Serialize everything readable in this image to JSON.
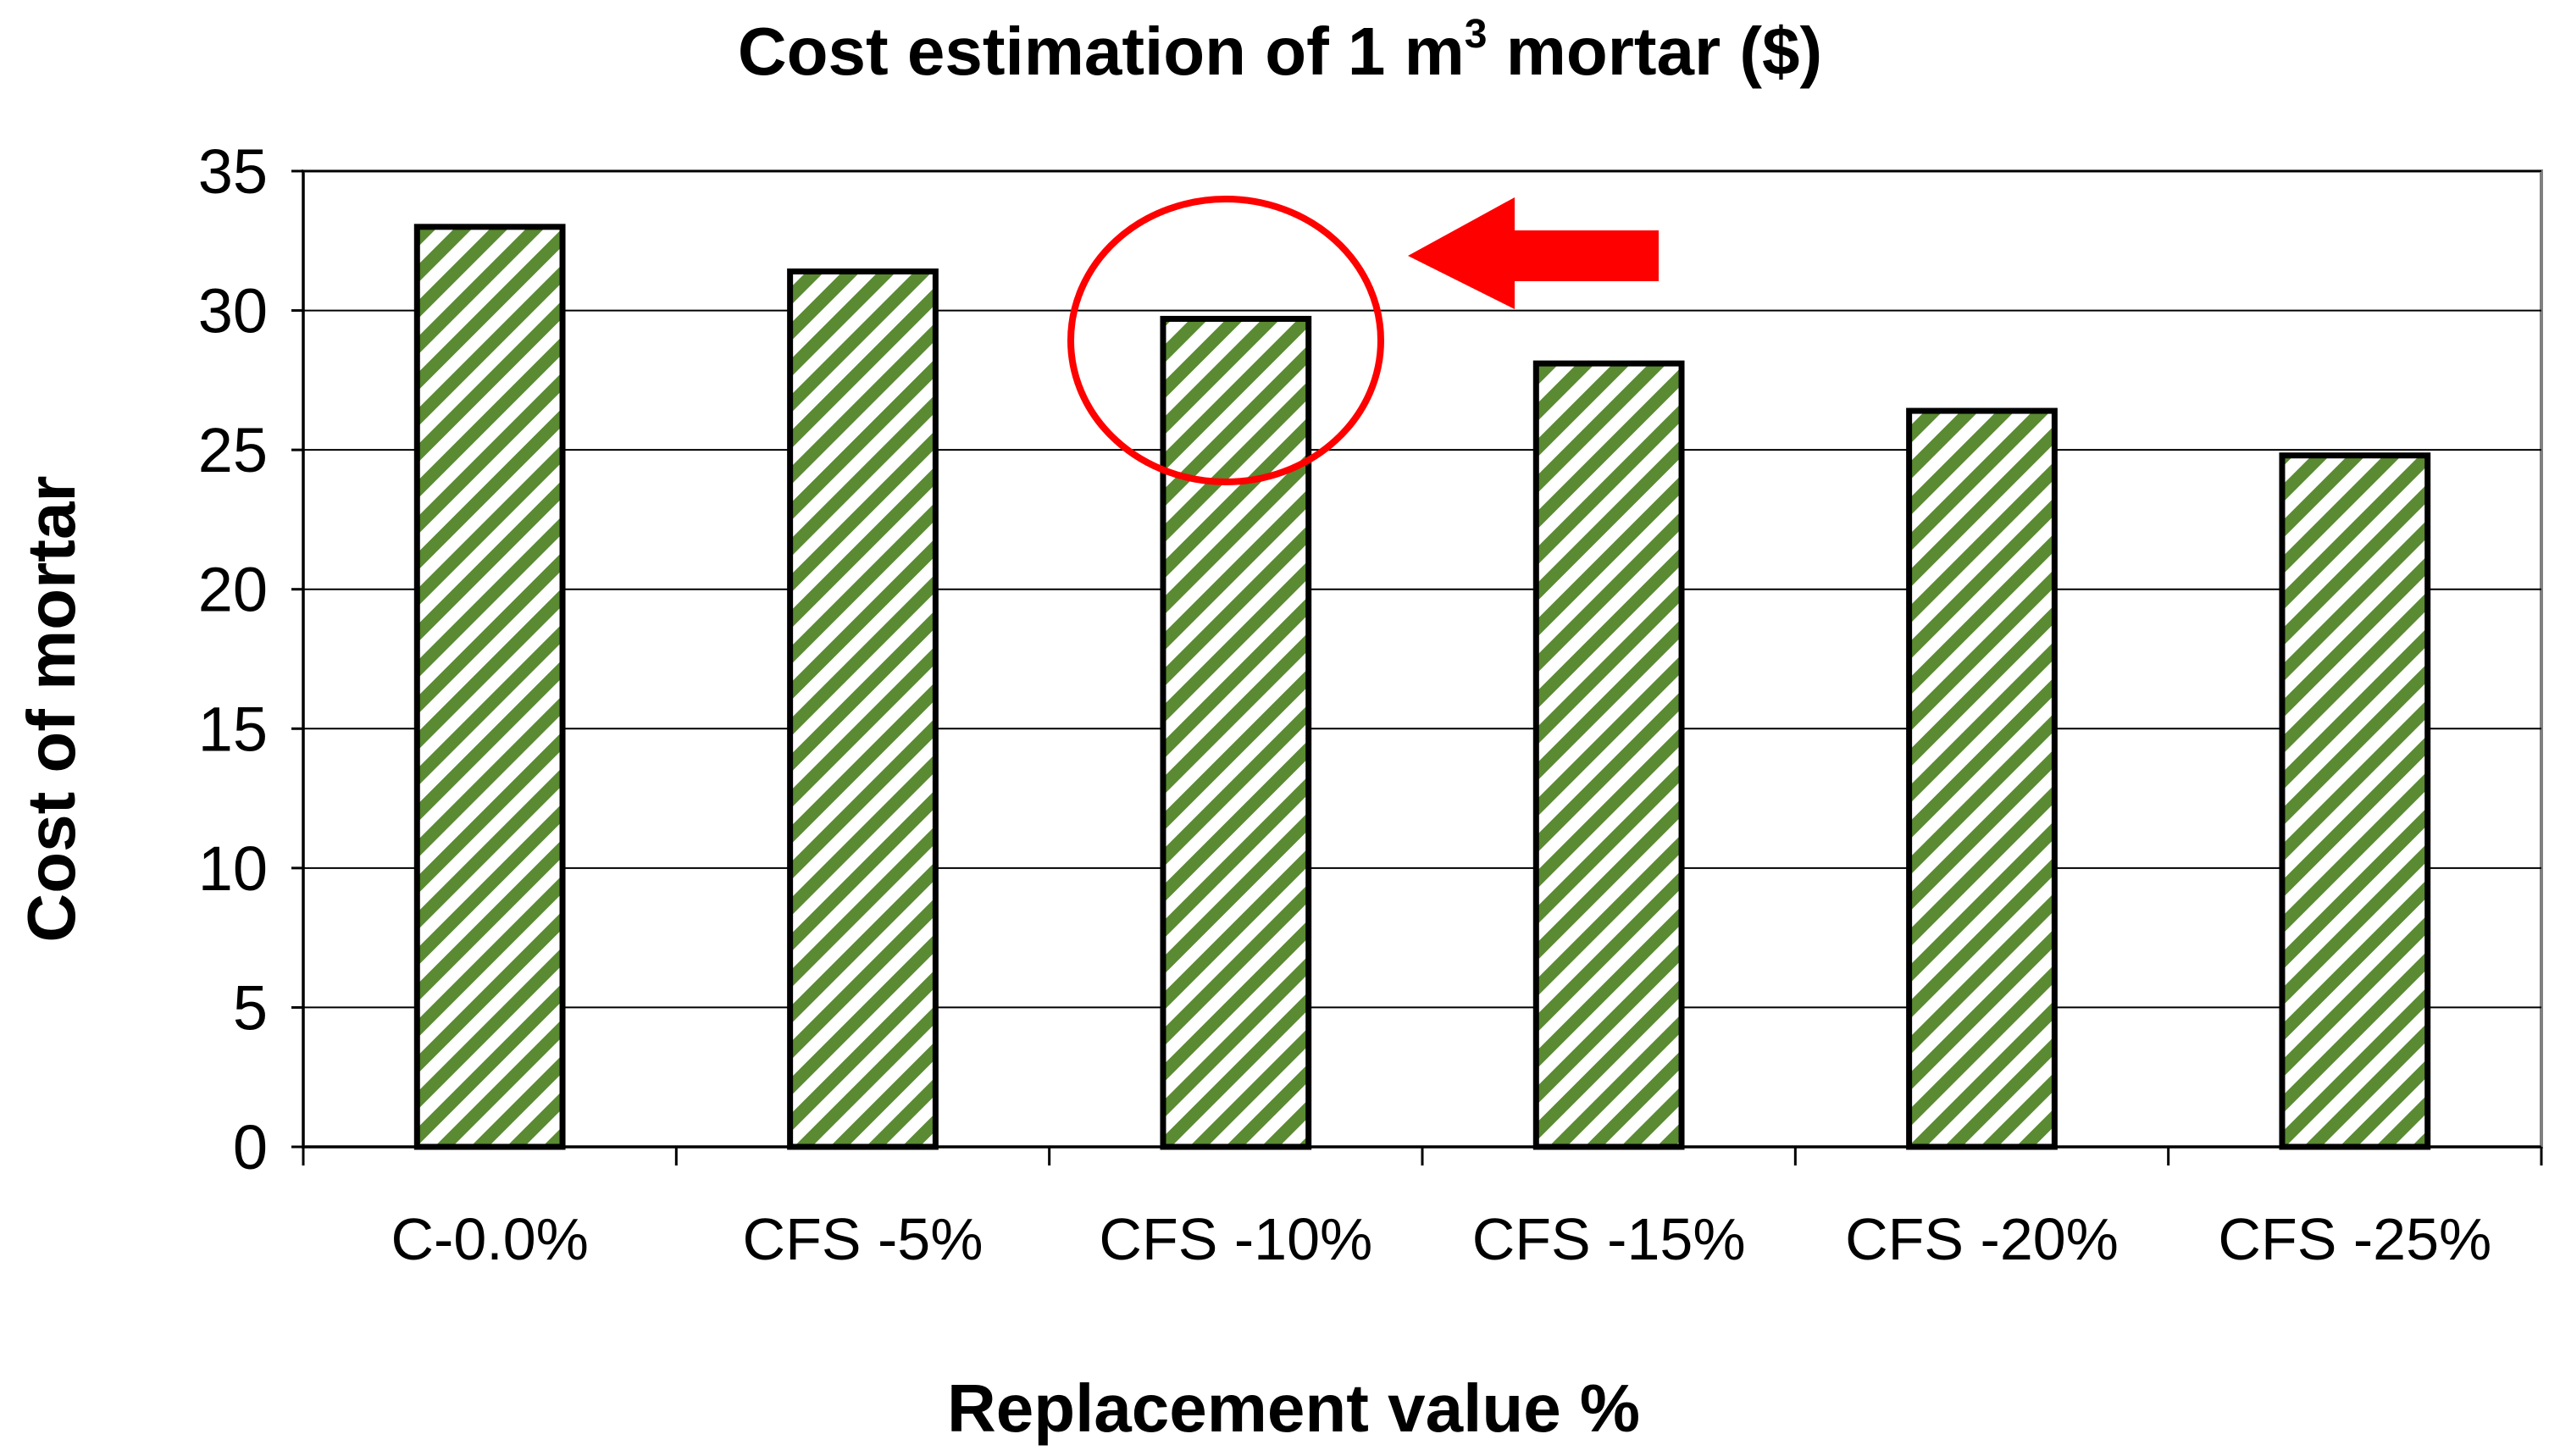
{
  "chart_data": {
    "type": "bar",
    "title": "Cost estimation of 1 m",
    "title_superscript": "3",
    "title_suffix": " mortar ($)",
    "xlabel": "Replacement value %",
    "ylabel": "Cost of mortar",
    "categories": [
      "C-0.0%",
      "CFS -5%",
      "CFS -10%",
      "CFS -15%",
      "CFS -20%",
      "CFS -25%"
    ],
    "values": [
      33.0,
      31.4,
      29.7,
      28.1,
      26.4,
      24.8
    ],
    "ylim": [
      0,
      35
    ],
    "yticks": [
      "0",
      "5",
      "10",
      "15",
      "20",
      "25",
      "30",
      "35"
    ],
    "grid": true,
    "bar_pattern": "diagonal-stripes",
    "bar_color": "#5a8a32",
    "highlight": {
      "category": "CFS -10%",
      "shape": "circle-with-arrow",
      "color": "#ff0000"
    }
  }
}
